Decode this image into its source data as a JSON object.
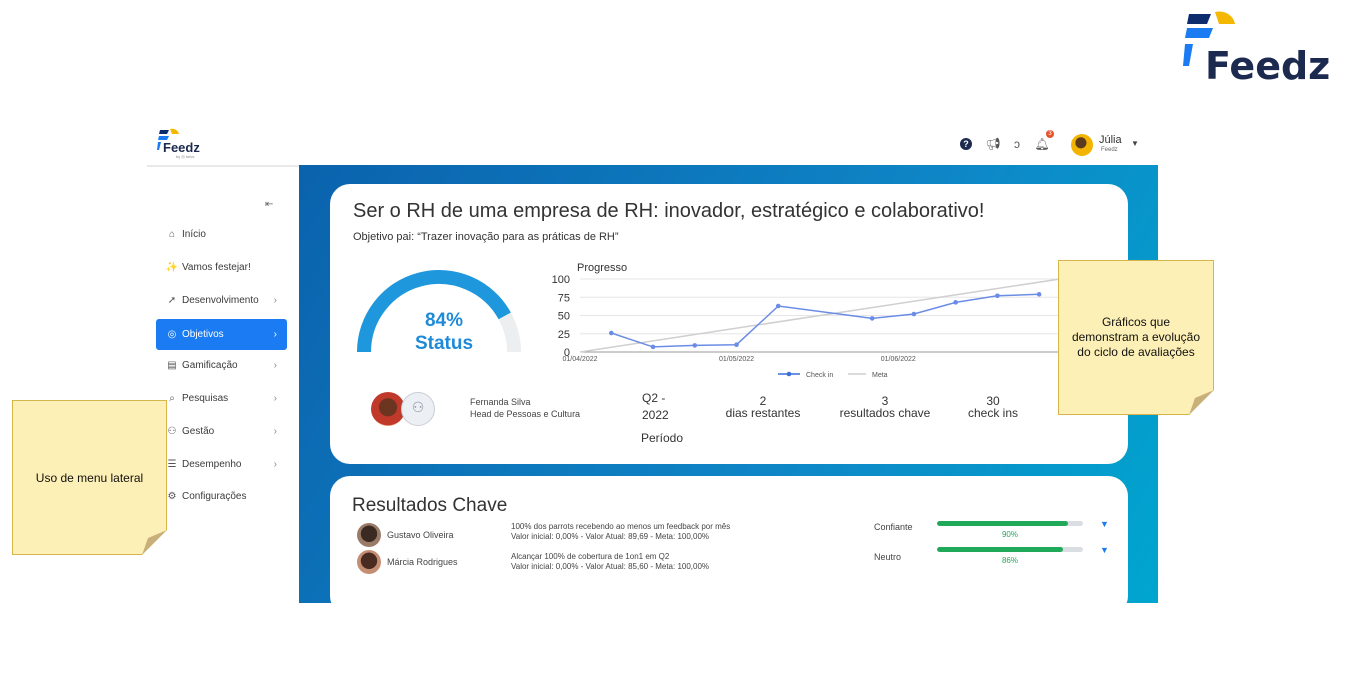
{
  "brand": {
    "name": "Feedz"
  },
  "app": {
    "logo_text": "Feedz",
    "logo_sub": "by ◎ totvs",
    "topbar": {
      "notification_count": "3",
      "user_name": "Júlia",
      "user_org": "Feedz",
      "icons": [
        "help-icon",
        "megaphone-icon",
        "ear-icon",
        "bell-icon"
      ]
    },
    "sidebar": {
      "items": [
        {
          "label": "Início",
          "icon": "home-icon",
          "glyph": "⌂",
          "chevron": ""
        },
        {
          "label": "Vamos festejar!",
          "icon": "party-icon",
          "glyph": "✨",
          "chevron": ""
        },
        {
          "label": "Desenvolvimento",
          "icon": "rocket-icon",
          "glyph": "➚",
          "chevron": "›"
        },
        {
          "label": "Objetivos",
          "icon": "target-icon",
          "glyph": "◎",
          "chevron": "›"
        },
        {
          "label": "Gamificação",
          "icon": "coins-icon",
          "glyph": "▤",
          "chevron": "›"
        },
        {
          "label": "Pesquisas",
          "icon": "search-icon",
          "glyph": "⌕",
          "chevron": "›"
        },
        {
          "label": "Gestão",
          "icon": "people-icon",
          "glyph": "⚇",
          "chevron": "›"
        },
        {
          "label": "Desempenho",
          "icon": "clipboard-icon",
          "glyph": "☰",
          "chevron": "›"
        },
        {
          "label": "Configurações",
          "icon": "gear-icon",
          "glyph": "⚙",
          "chevron": ""
        }
      ],
      "active_index": 3
    },
    "objective": {
      "title": "Ser o RH de uma empresa de RH: inovador, estratégico e colaborativo!",
      "parent": "Objetivo pai: “Trazer inovação para as práticas de RH”",
      "status_percent": "84%",
      "status_label": "Status",
      "status_value": 0.84,
      "owner_name": "Fernanda Silva",
      "owner_role": "Head de Pessoas e Cultura",
      "period_line1": "Q2 -",
      "period_line2": "2022",
      "period_label": "Período",
      "stats": [
        {
          "value": "2",
          "label": "dias restantes"
        },
        {
          "value": "3",
          "label": "resultados chave"
        },
        {
          "value": "30",
          "label": "check ins"
        }
      ]
    },
    "key_results": {
      "title": "Resultados Chave",
      "items": [
        {
          "owner": "Gustavo Oliveira",
          "desc1": "100% dos parrots recebendo ao menos um feedback por mês",
          "desc2": "Valor inicial: 0,00% - Valor Atual: 89,69 - Meta: 100,00%",
          "status": "Confiante",
          "percent": "90%",
          "progress": 0.9
        },
        {
          "owner": "Márcia Rodrigues",
          "desc1": "Alcançar 100% de cobertura de 1on1 em Q2",
          "desc2": "Valor inicial: 0,00% - Valor Atual: 85,60 - Meta: 100,00%",
          "status": "Neutro",
          "percent": "86%",
          "progress": 0.86
        }
      ]
    }
  },
  "notes": {
    "menu": "Uso de menu lateral",
    "graphs": "Gráficos que demonstram a evolução do ciclo de avaliações"
  },
  "colors": {
    "accent": "#1a7bf2",
    "gauge": "#1f8ad8",
    "success": "#21a95a",
    "check_in_line": "#6b8ce6",
    "meta_line": "#cfcfcf",
    "note": "#fdf0b6"
  },
  "chart_data": {
    "type": "line",
    "title": "Progresso",
    "x_tick_labels": [
      "01/04/2022",
      "01/05/2022",
      "01/06/2022"
    ],
    "ylim": [
      0,
      100
    ],
    "y_ticks": [
      0,
      25,
      50,
      75,
      100
    ],
    "grid": true,
    "legend": "bottom",
    "series": [
      {
        "name": "Check in",
        "x": [
          "2022-04-07",
          "2022-04-15",
          "2022-04-23",
          "2022-05-01",
          "2022-05-09",
          "2022-05-27",
          "2022-06-04",
          "2022-06-12",
          "2022-06-20",
          "2022-06-28"
        ],
        "values": [
          26,
          7,
          9,
          10,
          63,
          46,
          52,
          68,
          77,
          79
        ]
      },
      {
        "name": "Meta",
        "x": [
          "2022-04-01",
          "2022-07-02"
        ],
        "values": [
          0,
          100
        ]
      }
    ]
  }
}
